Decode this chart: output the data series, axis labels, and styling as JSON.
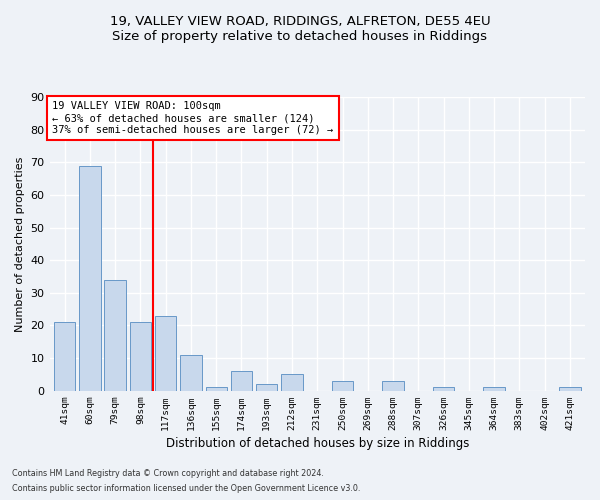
{
  "title1": "19, VALLEY VIEW ROAD, RIDDINGS, ALFRETON, DE55 4EU",
  "title2": "Size of property relative to detached houses in Riddings",
  "xlabel": "Distribution of detached houses by size in Riddings",
  "ylabel": "Number of detached properties",
  "categories": [
    "41sqm",
    "60sqm",
    "79sqm",
    "98sqm",
    "117sqm",
    "136sqm",
    "155sqm",
    "174sqm",
    "193sqm",
    "212sqm",
    "231sqm",
    "250sqm",
    "269sqm",
    "288sqm",
    "307sqm",
    "326sqm",
    "345sqm",
    "364sqm",
    "383sqm",
    "402sqm",
    "421sqm"
  ],
  "values": [
    21,
    69,
    34,
    21,
    23,
    11,
    1,
    6,
    2,
    5,
    0,
    3,
    0,
    3,
    0,
    1,
    0,
    1,
    0,
    0,
    1
  ],
  "bar_color": "#c8d8ec",
  "bar_edge_color": "#6898c8",
  "vline_x": 3.5,
  "annotation_line1": "19 VALLEY VIEW ROAD: 100sqm",
  "annotation_line2": "← 63% of detached houses are smaller (124)",
  "annotation_line3": "37% of semi-detached houses are larger (72) →",
  "ylim": [
    0,
    90
  ],
  "yticks": [
    0,
    10,
    20,
    30,
    40,
    50,
    60,
    70,
    80,
    90
  ],
  "footer1": "Contains HM Land Registry data © Crown copyright and database right 2024.",
  "footer2": "Contains public sector information licensed under the Open Government Licence v3.0.",
  "background_color": "#eef2f7",
  "grid_color": "#ffffff"
}
